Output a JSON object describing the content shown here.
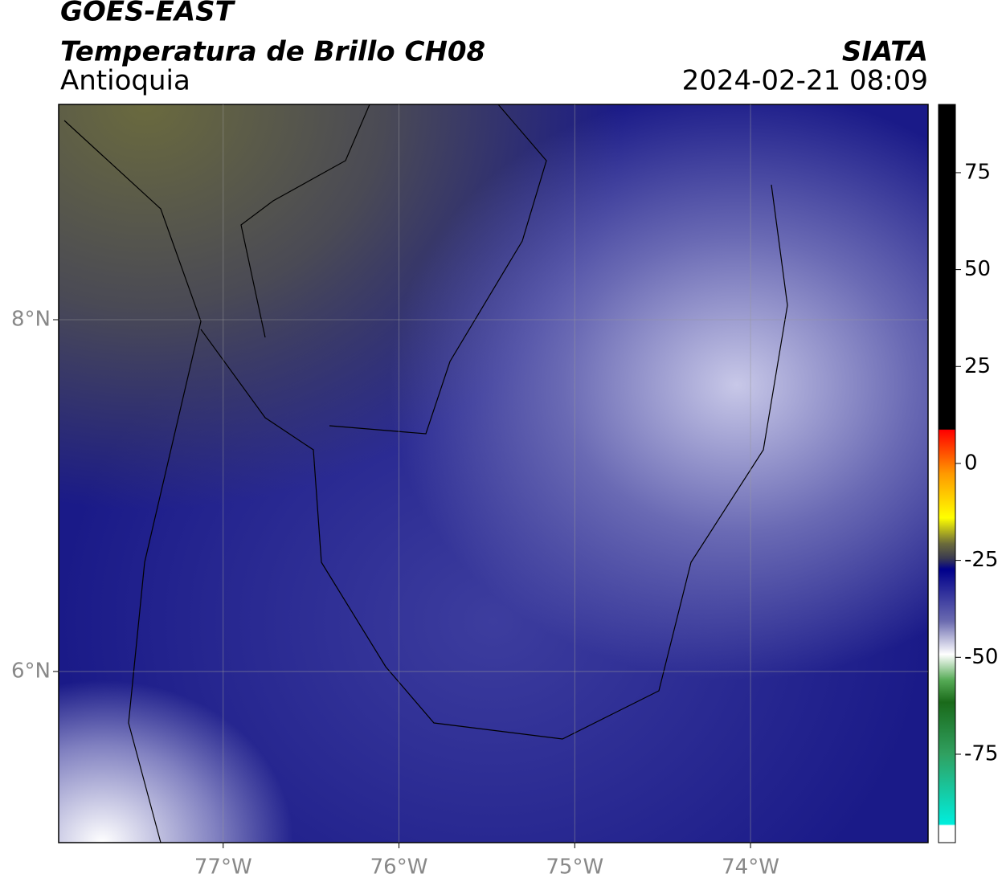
{
  "header": {
    "title": "GOES-EAST",
    "subtitle": "Temperatura de Brillo CH08",
    "region": "Antioquia",
    "source": "SIATA",
    "datetime": "2024-02-21 08:09"
  },
  "map": {
    "xlim": [
      -77.936,
      -72.99
    ],
    "ylim": [
      5.027,
      9.224
    ],
    "xticks": [
      {
        "value": -77,
        "label": "77°W"
      },
      {
        "value": -76,
        "label": "76°W"
      },
      {
        "value": -75,
        "label": "75°W"
      },
      {
        "value": -74,
        "label": "74°W"
      }
    ],
    "yticks": [
      {
        "value": 6,
        "label": "6°N"
      },
      {
        "value": 8,
        "label": "8°N"
      }
    ],
    "grid": true
  },
  "colorbar": {
    "lim": [
      -97.8,
      92.6
    ],
    "ticks": [
      -75,
      -50,
      -25,
      0,
      25,
      50,
      75
    ]
  }
}
